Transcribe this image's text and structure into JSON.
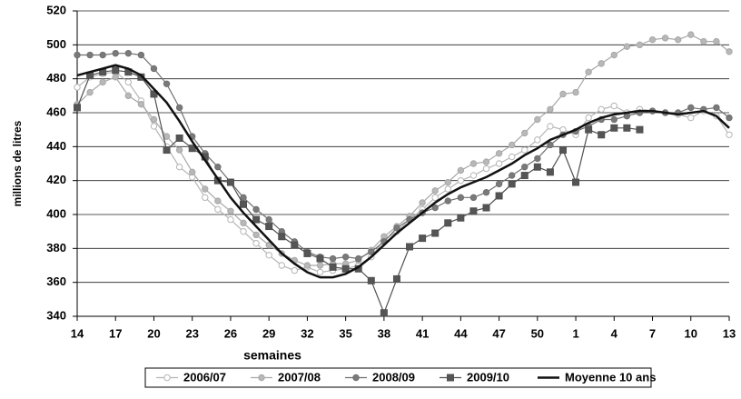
{
  "chart_data": {
    "type": "line",
    "y_label": "millions de litres",
    "x_label": "semaines",
    "categories": [
      14,
      null,
      null,
      17,
      null,
      null,
      20,
      null,
      null,
      23,
      null,
      null,
      26,
      null,
      null,
      29,
      null,
      null,
      32,
      null,
      null,
      35,
      null,
      null,
      38,
      null,
      null,
      41,
      null,
      null,
      44,
      null,
      null,
      47,
      null,
      null,
      50,
      null,
      null,
      1,
      null,
      null,
      4,
      null,
      null,
      7,
      null,
      null,
      10,
      null,
      null,
      13
    ],
    "ylim": [
      340,
      520
    ],
    "yticks": [
      340,
      360,
      380,
      400,
      420,
      440,
      460,
      480,
      500,
      520
    ],
    "grid": true,
    "legend": "bottom",
    "series": [
      {
        "name": "2006/07",
        "color": "#b5b5b5",
        "marker": "circle",
        "marker_fill": "#ffffff",
        "values": [
          475,
          481,
          483,
          484,
          478,
          467,
          452,
          440,
          428,
          422,
          410,
          403,
          397,
          390,
          383,
          376,
          370,
          367,
          369,
          366,
          367,
          368,
          370,
          375,
          385,
          390,
          397,
          403,
          410,
          415,
          420,
          423,
          427,
          430,
          434,
          438,
          444,
          452,
          450,
          447,
          457,
          462,
          464,
          460,
          462,
          461,
          460,
          459,
          457,
          461,
          458,
          447
        ]
      },
      {
        "name": "2007/08",
        "color": "#a8a8a8",
        "marker": "circle",
        "marker_fill": "#b8b8b8",
        "values": [
          465,
          472,
          478,
          481,
          470,
          465,
          456,
          446,
          438,
          425,
          415,
          408,
          402,
          395,
          388,
          382,
          377,
          373,
          370,
          370,
          371,
          371,
          373,
          379,
          387,
          393,
          399,
          407,
          414,
          419,
          426,
          430,
          431,
          436,
          441,
          448,
          456,
          462,
          471,
          472,
          484,
          489,
          494,
          499,
          500,
          503,
          504,
          503,
          506,
          502,
          502,
          496
        ]
      },
      {
        "name": "2008/09",
        "color": "#707070",
        "marker": "circle",
        "marker_fill": "#7a7a7a",
        "values": [
          494,
          494,
          494,
          495,
          495,
          494,
          486,
          477,
          463,
          446,
          436,
          428,
          419,
          410,
          403,
          397,
          390,
          384,
          378,
          375,
          374,
          375,
          374,
          378,
          384,
          392,
          397,
          401,
          404,
          408,
          410,
          410,
          413,
          418,
          423,
          428,
          433,
          441,
          447,
          449,
          452,
          456,
          456,
          458,
          460,
          461,
          460,
          460,
          463,
          462,
          463,
          457
        ]
      },
      {
        "name": "2009/10",
        "color": "#505050",
        "marker": "square",
        "marker_fill": "#555555",
        "values": [
          463,
          482,
          484,
          485,
          484,
          481,
          471,
          438,
          445,
          439,
          434,
          420,
          419,
          406,
          397,
          393,
          387,
          382,
          377,
          374,
          369,
          368,
          368,
          361,
          342,
          362,
          381,
          386,
          389,
          395,
          398,
          402,
          404,
          411,
          418,
          423,
          428,
          425,
          438,
          419,
          450,
          447,
          451,
          451,
          450,
          null,
          null,
          null,
          null,
          null,
          null,
          null
        ]
      },
      {
        "name": "Moyenne 10 ans",
        "color": "#111111",
        "marker": "none",
        "marker_fill": "#111111",
        "values": [
          482,
          484,
          486,
          488,
          486,
          482,
          474,
          466,
          455,
          443,
          432,
          421,
          410,
          401,
          393,
          385,
          377,
          371,
          366,
          363,
          363,
          365,
          369,
          375,
          382,
          389,
          395,
          401,
          407,
          412,
          416,
          419,
          422,
          426,
          430,
          435,
          439,
          444,
          447,
          450,
          454,
          457,
          459,
          460,
          461,
          461,
          460,
          459,
          460,
          461,
          458,
          451
        ]
      }
    ]
  }
}
